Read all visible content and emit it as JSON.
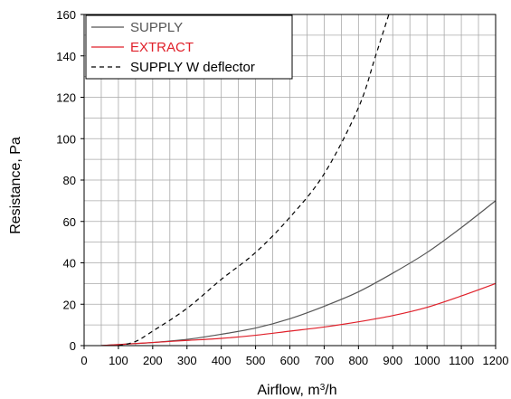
{
  "chart_data": {
    "type": "line",
    "xlabel": "Airflow, m³/h",
    "xlabel_base": "Airflow, m",
    "xlabel_sup": "3",
    "xlabel_tail": "/h",
    "ylabel": "Resistance, Pa",
    "xlim": [
      0,
      1200
    ],
    "ylim": [
      0,
      160
    ],
    "x_ticks": [
      0,
      100,
      200,
      300,
      400,
      500,
      600,
      700,
      800,
      900,
      1000,
      1100,
      1200
    ],
    "y_ticks": [
      0,
      20,
      40,
      60,
      80,
      100,
      120,
      140,
      160
    ],
    "x_tick_labels": [
      "0",
      "100",
      "200",
      "300",
      "400",
      "500",
      "600",
      "700",
      "800",
      "900",
      "1000",
      "1100",
      "1200"
    ],
    "y_tick_labels": [
      "0",
      "20",
      "40",
      "60",
      "80",
      "100",
      "120",
      "140",
      "160"
    ],
    "grid": true,
    "legend_position": "top-left",
    "series": [
      {
        "name": "SUPPLY",
        "color": "#555555",
        "style": "solid",
        "x": [
          50,
          100,
          150,
          200,
          300,
          400,
          500,
          600,
          700,
          800,
          900,
          1000,
          1100,
          1200
        ],
        "y": [
          0,
          0.5,
          1,
          1.5,
          3,
          5.5,
          8.5,
          13,
          19,
          26,
          35,
          45,
          57,
          70
        ]
      },
      {
        "name": "EXTRACT",
        "color": "#e0202a",
        "style": "solid",
        "x": [
          50,
          100,
          150,
          200,
          300,
          400,
          500,
          600,
          700,
          800,
          900,
          1000,
          1100,
          1200
        ],
        "y": [
          0,
          0.5,
          1,
          1.5,
          2.5,
          3.5,
          5,
          7,
          9,
          11.5,
          14.5,
          18.5,
          24,
          30
        ]
      },
      {
        "name": "SUPPLY W deflector",
        "color": "#000000",
        "style": "dashed",
        "x": [
          100,
          150,
          200,
          300,
          400,
          500,
          600,
          700,
          800,
          850,
          900
        ],
        "y": [
          0,
          2,
          7,
          18,
          32,
          45,
          62,
          83,
          115,
          140,
          166
        ]
      }
    ]
  }
}
